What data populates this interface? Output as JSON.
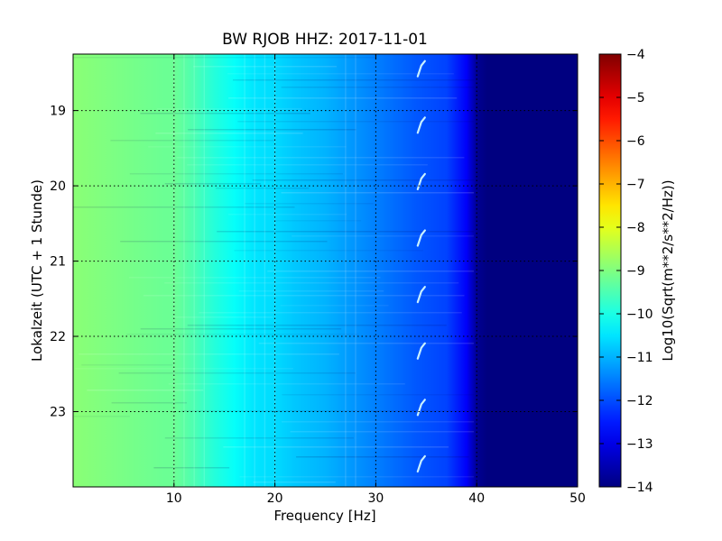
{
  "chart_data": {
    "type": "heatmap",
    "title": "BW RJOB HHZ: 2017-11-01",
    "xlabel": "Frequency [Hz]",
    "ylabel": "Lokalzeit (UTC + 1 Stunde)",
    "xlim": [
      0,
      50
    ],
    "ylim_hours": [
      18.25,
      24.0
    ],
    "y_inverted": true,
    "grid": true,
    "x_ticks": [
      10,
      20,
      30,
      40,
      50
    ],
    "x_tick_labels": [
      "10",
      "20",
      "30",
      "40",
      "50"
    ],
    "y_ticks": [
      19,
      20,
      21,
      22,
      23
    ],
    "y_tick_labels": [
      "19",
      "20",
      "21",
      "22",
      "23"
    ],
    "colormap": "jet",
    "colorbar": {
      "label": "Log10(Sqrt(m**2/s**2/Hz))",
      "min": -14,
      "max": -4,
      "ticks": [
        -4,
        -5,
        -6,
        -7,
        -8,
        -9,
        -10,
        -11,
        -12,
        -13,
        -14
      ],
      "tick_labels": [
        "−4",
        "−5",
        "−6",
        "−7",
        "−8",
        "−9",
        "−10",
        "−11",
        "−12",
        "−13",
        "−14"
      ]
    },
    "spectrum_profile": {
      "frequency_hz": [
        0,
        3,
        6,
        9,
        10,
        12,
        14,
        16,
        18,
        20,
        22,
        25,
        28,
        31,
        34,
        37,
        39,
        40,
        41,
        44,
        47,
        50
      ],
      "log10_amplitude": [
        -8.9,
        -9.0,
        -9.1,
        -9.2,
        -9.2,
        -9.5,
        -9.9,
        -10.2,
        -10.5,
        -10.6,
        -10.8,
        -11.0,
        -11.3,
        -11.6,
        -11.9,
        -12.1,
        -12.8,
        -13.8,
        -14.0,
        -14.0,
        -14.0,
        -14.0
      ]
    },
    "periodic_lines_hz": [
      10,
      11,
      12,
      13,
      17,
      18,
      19,
      20,
      27,
      28
    ],
    "recurring_event": {
      "frequency_hz": 34.6,
      "times_hours": [
        18.45,
        19.2,
        19.95,
        20.7,
        21.45,
        22.2,
        22.95,
        23.7
      ]
    }
  }
}
